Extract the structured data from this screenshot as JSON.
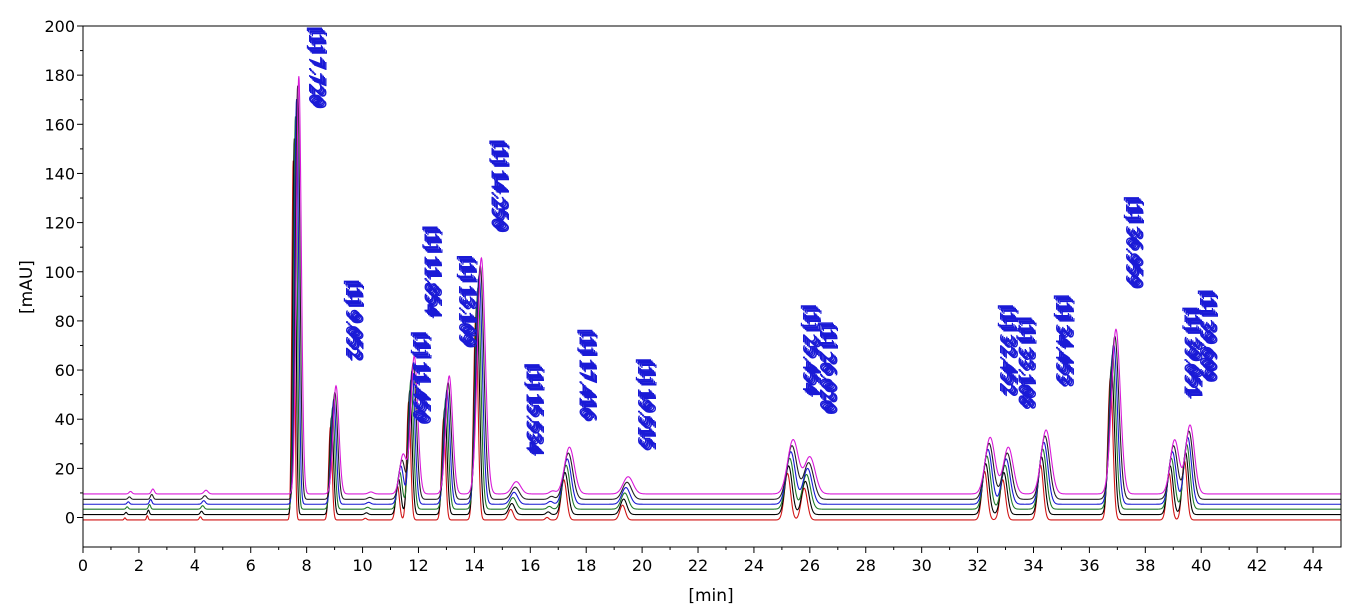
{
  "chart_data": {
    "type": "line",
    "title": "",
    "xlabel": "[min]",
    "ylabel": "[mAU]",
    "xlim": [
      0,
      45
    ],
    "ylim": [
      -12,
      200
    ],
    "x_ticks": [
      "0",
      "2",
      "4",
      "6",
      "8",
      "10",
      "12",
      "14",
      "16",
      "18",
      "20",
      "22",
      "24",
      "26",
      "28",
      "30",
      "32",
      "34",
      "36",
      "38",
      "40",
      "42",
      "44"
    ],
    "y_ticks": [
      "0",
      "20",
      "40",
      "60",
      "80",
      "100",
      "120",
      "140",
      "160",
      "180",
      "200"
    ],
    "grid": false,
    "legend": "none",
    "series": [
      {
        "color": "#d01515",
        "baseline": -1.0,
        "scale": 0.86
      },
      {
        "color": "#000000",
        "baseline": 1.2,
        "scale": 0.9
      },
      {
        "color": "#1f7a2a",
        "baseline": 3.4,
        "scale": 0.94
      },
      {
        "color": "#1818d0",
        "baseline": 5.4,
        "scale": 0.97
      },
      {
        "color": "#222222",
        "baseline": 7.4,
        "scale": 0.99
      },
      {
        "color": "#d81ad8",
        "baseline": 9.6,
        "scale": 1.0
      }
    ],
    "peaks": [
      {
        "t": 7.72,
        "height": 170,
        "width": 0.05
      },
      {
        "t": 9.05,
        "height": 44,
        "width": 0.06
      },
      {
        "t": 11.45,
        "height": 16,
        "width": 0.07
      },
      {
        "t": 11.85,
        "height": 56,
        "width": 0.07
      },
      {
        "t": 13.1,
        "height": 48,
        "width": 0.07
      },
      {
        "t": 14.25,
        "height": 96,
        "width": 0.08
      },
      {
        "t": 15.5,
        "height": 5,
        "width": 0.09
      },
      {
        "t": 17.4,
        "height": 19,
        "width": 0.1
      },
      {
        "t": 19.5,
        "height": 7,
        "width": 0.1
      },
      {
        "t": 25.4,
        "height": 22,
        "width": 0.11
      },
      {
        "t": 26.0,
        "height": 15,
        "width": 0.11
      },
      {
        "t": 32.45,
        "height": 23,
        "width": 0.1
      },
      {
        "t": 33.1,
        "height": 19,
        "width": 0.1
      },
      {
        "t": 34.45,
        "height": 26,
        "width": 0.1
      },
      {
        "t": 36.95,
        "height": 67,
        "width": 0.09
      },
      {
        "t": 39.05,
        "height": 22,
        "width": 0.09
      },
      {
        "t": 39.6,
        "height": 28,
        "width": 0.09
      },
      {
        "t": 1.7,
        "height": 1.0,
        "width": 0.03
      },
      {
        "t": 2.5,
        "height": 2.0,
        "width": 0.03
      },
      {
        "t": 4.4,
        "height": 1.5,
        "width": 0.04
      },
      {
        "t": 10.3,
        "height": 0.8,
        "width": 0.05
      },
      {
        "t": 16.8,
        "height": 1.2,
        "width": 0.06
      }
    ],
    "annotations": [
      {
        "x": 7.72,
        "text": "[1]  7.720",
        "y_top": 200
      },
      {
        "x": 9.05,
        "text": "[1] 9.052",
        "y_top": 97
      },
      {
        "x": 11.45,
        "text": "[1] 11.450",
        "y_top": 76
      },
      {
        "x": 11.85,
        "text": "[1] 11.854",
        "y_top": 119
      },
      {
        "x": 13.1,
        "text": "[1] 13.109",
        "y_top": 107
      },
      {
        "x": 14.25,
        "text": "[1] 14.250",
        "y_top": 154
      },
      {
        "x": 15.5,
        "text": "[1] 15.534",
        "y_top": 63
      },
      {
        "x": 17.4,
        "text": "[1] 17.416",
        "y_top": 77
      },
      {
        "x": 19.5,
        "text": "[1] 19.515",
        "y_top": 65
      },
      {
        "x": 25.4,
        "text": "[1] 25.454",
        "y_top": 87
      },
      {
        "x": 26.0,
        "text": "[1] 26.020",
        "y_top": 80
      },
      {
        "x": 32.45,
        "text": "[1] 32.452",
        "y_top": 87
      },
      {
        "x": 33.1,
        "text": "[1] 33.108",
        "y_top": 82
      },
      {
        "x": 34.45,
        "text": "[1] 34.453",
        "y_top": 91
      },
      {
        "x": 36.95,
        "text": "[1] 36.959",
        "y_top": 131
      },
      {
        "x": 39.05,
        "text": "[1] 39.051",
        "y_top": 86
      },
      {
        "x": 39.6,
        "text": "[1] 39.609",
        "y_top": 93
      }
    ]
  }
}
